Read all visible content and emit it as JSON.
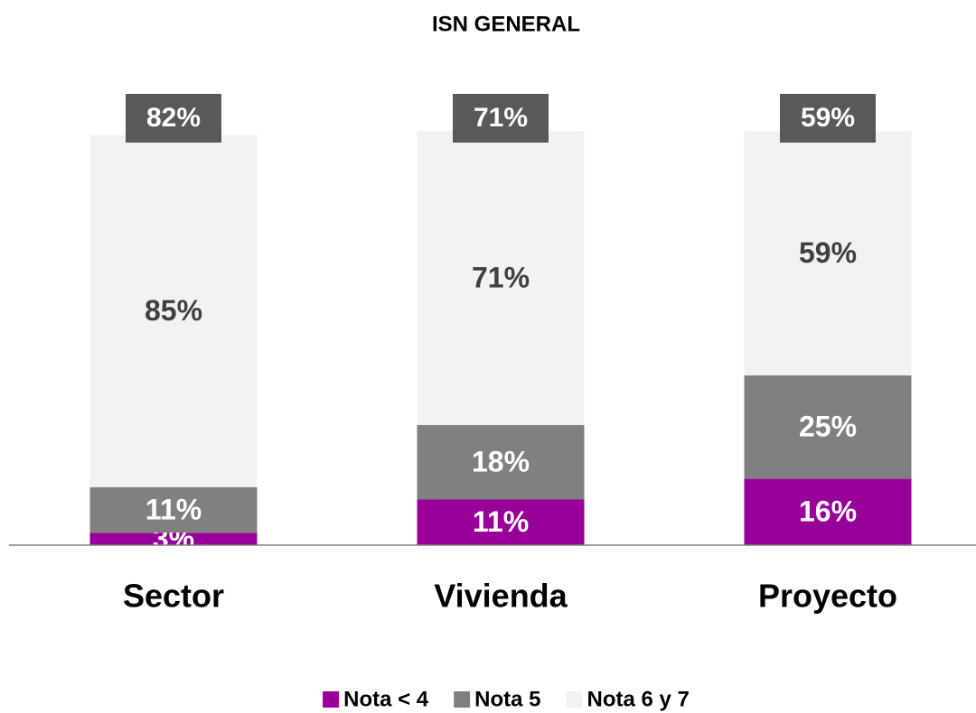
{
  "chart_data": {
    "type": "stacked_bar",
    "title": "ISN GENERAL",
    "categories": [
      "Sector",
      "Vivienda",
      "Proyecto"
    ],
    "series": [
      {
        "name": "Nota < 4",
        "color": "#990099",
        "values": [
          3,
          11,
          16
        ],
        "value_labels": [
          "3%",
          "11%",
          "16%"
        ]
      },
      {
        "name": "Nota 5",
        "color": "#808080",
        "values": [
          11,
          18,
          25
        ],
        "value_labels": [
          "11%",
          "18%",
          "25%"
        ]
      },
      {
        "name": "Nota 6 y 7",
        "color": "#f2f2f2",
        "values": [
          85,
          71,
          59
        ],
        "value_labels": [
          "85%",
          "71%",
          "59%"
        ]
      }
    ],
    "top_labels": {
      "values": [
        82,
        71,
        59
      ],
      "value_labels": [
        "82%",
        "71%",
        "59%"
      ],
      "color": "#595959"
    },
    "ylim": [
      0,
      100
    ],
    "legend": "bottom"
  }
}
